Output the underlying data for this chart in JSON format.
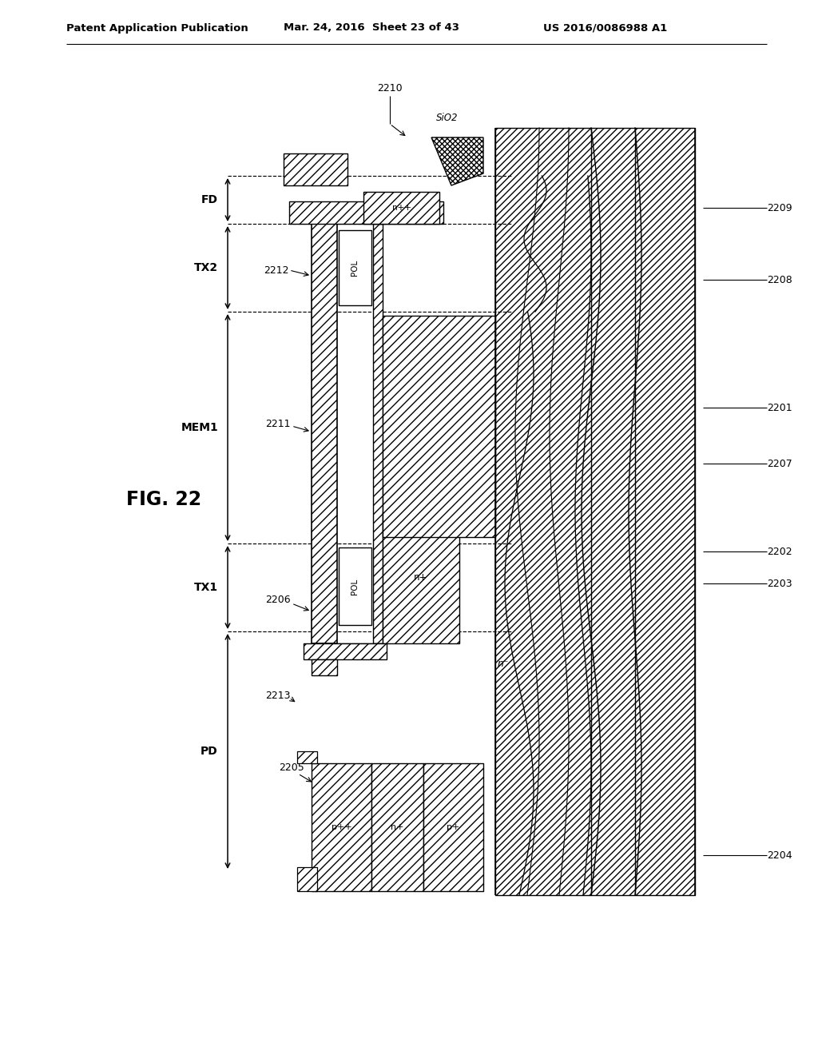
{
  "header_left": "Patent Application Publication",
  "header_mid": "Mar. 24, 2016  Sheet 23 of 43",
  "header_right": "US 2016/0086988 A1",
  "fig_label": "FIG. 22",
  "bg_color": "#ffffff"
}
